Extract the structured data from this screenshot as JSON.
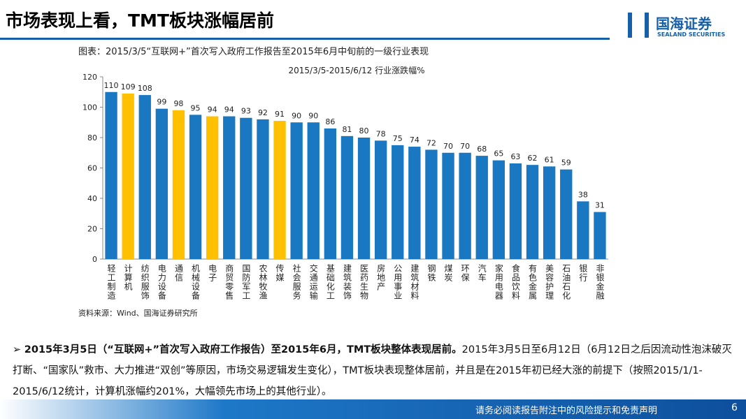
{
  "header": {
    "title": "市场表现上看，TMT板块涨幅居前",
    "logo": "国海证券",
    "logo_sub": "SEALAND SECURITIES"
  },
  "chart_data": {
    "type": "bar",
    "title": "图表：2015/3/5“互联网+”首次写入政府工作报告至2015年6月中旬前的一级行业表现",
    "subtitle": "2015/3/5-2015/6/12 行业涨跌幅%",
    "source": "资料来源：Wind、国海证券研究所",
    "categories": [
      "轻工制造",
      "计算机",
      "纺织服饰",
      "电力设备",
      "通信",
      "机械设备",
      "电子",
      "商贸零售",
      "国防军工",
      "农林牧渔",
      "传媒",
      "社会服务",
      "交通运输",
      "基础化工",
      "建筑装饰",
      "医药生物",
      "房地产",
      "公用事业",
      "建筑材料",
      "钢铁",
      "煤炭",
      "环保",
      "汽车",
      "家用电器",
      "食品饮料",
      "有色金属",
      "美容护理",
      "石油石化",
      "银行",
      "非银金融"
    ],
    "values": [
      110,
      109,
      108,
      99,
      98,
      95,
      94,
      94,
      93,
      92,
      91,
      90,
      90,
      86,
      81,
      80,
      78,
      75,
      74,
      72,
      70,
      70,
      68,
      65,
      63,
      62,
      61,
      59,
      38,
      31
    ],
    "colors": [
      "#1a78c2",
      "#ffc000",
      "#1a78c2",
      "#1a78c2",
      "#ffc000",
      "#1a78c2",
      "#ffc000",
      "#1a78c2",
      "#1a78c2",
      "#1a78c2",
      "#ffc000",
      "#1a78c2",
      "#1a78c2",
      "#1a78c2",
      "#1a78c2",
      "#1a78c2",
      "#1a78c2",
      "#1a78c2",
      "#1a78c2",
      "#1a78c2",
      "#1a78c2",
      "#1a78c2",
      "#1a78c2",
      "#1a78c2",
      "#1a78c2",
      "#1a78c2",
      "#1a78c2",
      "#1a78c2",
      "#1a78c2",
      "#1a78c2"
    ],
    "ylim": [
      0,
      120
    ],
    "yticks": [
      0,
      20,
      40,
      60,
      80,
      100,
      120
    ],
    "grid": false,
    "data_labels": true
  },
  "body": {
    "bold": "2015年3月5日（“互联网+”首次写入政府工作报告）至2015年6月，TMT板块整体表现居前。",
    "text": "2015年3月5日至6月12日（6月12日之后因流动性泡沫破灭打断、“国家队”救市、大力推进“双创”等原因，市场交易逻辑发生变化），TMT板块表现整体居前，并且是在2015年初已经大涨的前提下（按照2015/1/1-2015/6/12统计，计算机涨幅约201%，大幅领先市场上的其他行业）。"
  },
  "footer": {
    "disclaimer": "请务必阅读报告附注中的风险提示和免责声明",
    "page": "6"
  }
}
